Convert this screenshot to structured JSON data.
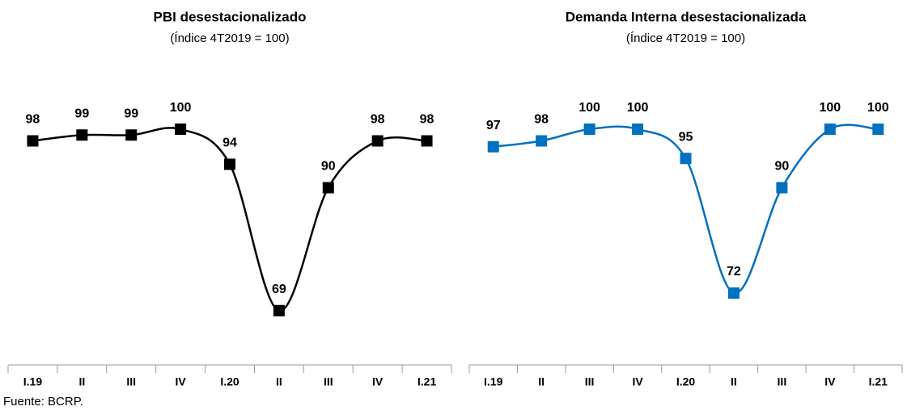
{
  "chart_data": [
    {
      "type": "line",
      "title": "PBI desestacionalizado",
      "subtitle": "(Índice 4T2019 = 100)",
      "categories": [
        "I.19",
        "II",
        "III",
        "IV",
        "I.20",
        "II",
        "III",
        "IV",
        "I.21"
      ],
      "series": [
        {
          "color": "#000000",
          "values": [
            98,
            99,
            99,
            100,
            94,
            69,
            90,
            98,
            98
          ]
        }
      ]
    },
    {
      "type": "line",
      "title": "Demanda Interna desestacionalizada",
      "subtitle": "(Índice 4T2019 = 100)",
      "categories": [
        "I.19",
        "II",
        "III",
        "IV",
        "I.20",
        "II",
        "III",
        "IV",
        "I.21"
      ],
      "series": [
        {
          "color": "#0070c0",
          "values": [
            97,
            98,
            100,
            100,
            95,
            72,
            90,
            100,
            100
          ]
        }
      ]
    }
  ],
  "source": "Fuente: BCRP."
}
